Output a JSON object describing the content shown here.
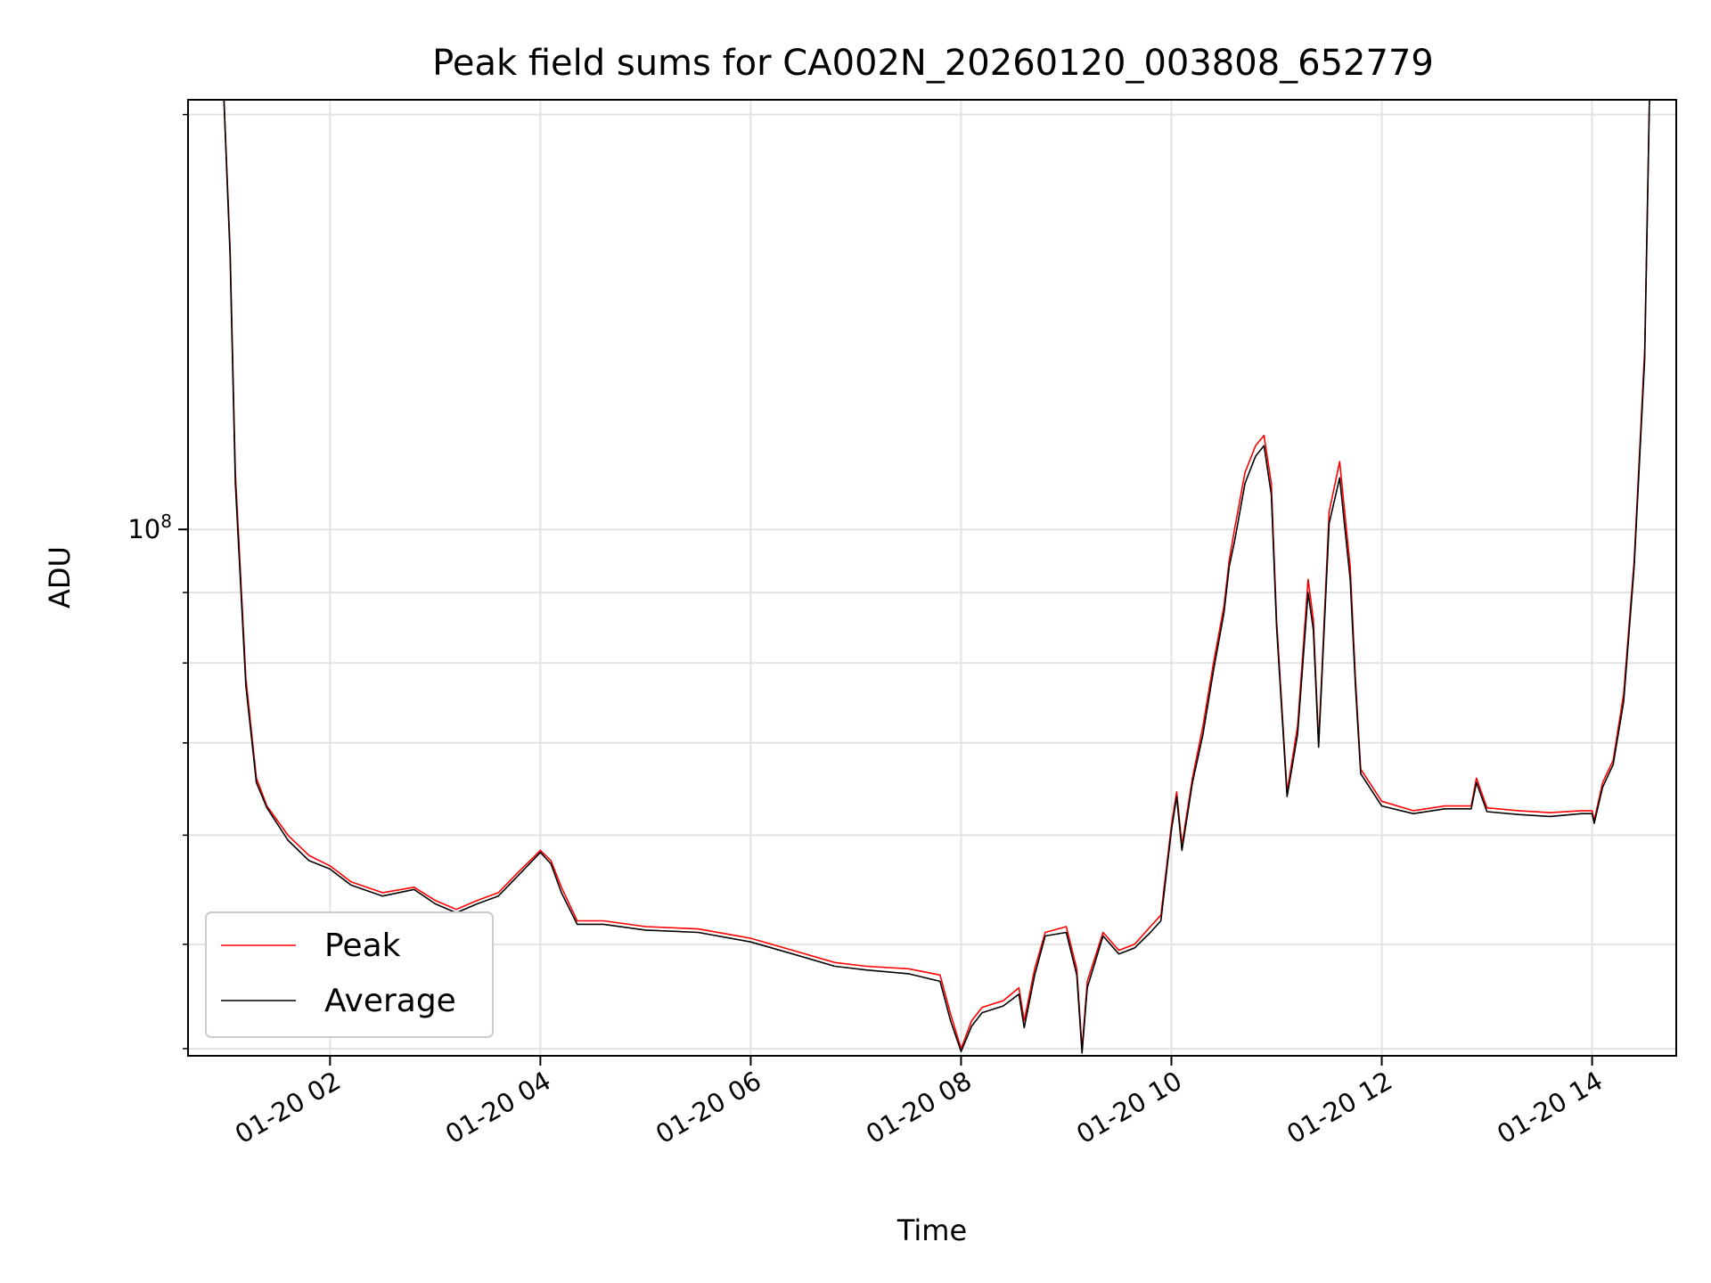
{
  "chart_data": {
    "type": "line",
    "title": "Peak field sums for CA002N_20260120_003808_652779",
    "xlabel": "Time",
    "ylabel": "ADU",
    "y_scale": "log",
    "y_tick_label": "10^8",
    "x_tick_labels": [
      "01-20 02",
      "01-20 04",
      "01-20 06",
      "01-20 08",
      "01-20 10",
      "01-20 12",
      "01-20 14"
    ],
    "x_ticks_hours": [
      2,
      4,
      6,
      8,
      10,
      12,
      14
    ],
    "xlim_hours": [
      0.65,
      14.8
    ],
    "ylim": [
      41500000,
      205000000
    ],
    "y_major_ticks": [
      100000000
    ],
    "y_minor_ticks": [
      42000000,
      50000000,
      60000000,
      70000000,
      80000000,
      90000000,
      200000000
    ],
    "grid": true,
    "legend_position": "lower-left",
    "series": [
      {
        "name": "Peak",
        "color": "#ff0000",
        "x_hours": [
          0.97,
          1.05,
          1.1,
          1.2,
          1.3,
          1.4,
          1.6,
          1.8,
          2.0,
          2.2,
          2.5,
          2.8,
          3.0,
          3.2,
          3.4,
          3.6,
          3.8,
          4.0,
          4.1,
          4.2,
          4.35,
          4.6,
          5.0,
          5.5,
          6.0,
          6.4,
          6.8,
          7.1,
          7.5,
          7.8,
          7.9,
          8.0,
          8.1,
          8.2,
          8.4,
          8.55,
          8.6,
          8.7,
          8.8,
          9.0,
          9.1,
          9.15,
          9.2,
          9.35,
          9.5,
          9.65,
          9.8,
          9.9,
          10.0,
          10.05,
          10.1,
          10.2,
          10.3,
          10.4,
          10.5,
          10.55,
          10.6,
          10.7,
          10.8,
          10.88,
          10.95,
          11.0,
          11.1,
          11.2,
          11.3,
          11.35,
          11.4,
          11.5,
          11.6,
          11.7,
          11.75,
          11.8,
          12.0,
          12.3,
          12.6,
          12.85,
          12.9,
          13.0,
          13.3,
          13.6,
          13.9,
          14.0,
          14.02,
          14.1,
          14.2,
          14.3,
          14.4,
          14.5,
          14.55
        ],
        "values": [
          225000000,
          160000000,
          110000000,
          78000000,
          66000000,
          63000000,
          60000000,
          58000000,
          57000000,
          55500000,
          54500000,
          55000000,
          53800000,
          53000000,
          53800000,
          54500000,
          56500000,
          58500000,
          57500000,
          55000000,
          52000000,
          52000000,
          51500000,
          51300000,
          50500000,
          49500000,
          48500000,
          48200000,
          48000000,
          47500000,
          44500000,
          42000000,
          44000000,
          45000000,
          45500000,
          46500000,
          44000000,
          48000000,
          51000000,
          51500000,
          48000000,
          42000000,
          47000000,
          51000000,
          49500000,
          50000000,
          51500000,
          52500000,
          61000000,
          64500000,
          59000000,
          66000000,
          72000000,
          80000000,
          88000000,
          95000000,
          100000000,
          110000000,
          115000000,
          117000000,
          108000000,
          86000000,
          64500000,
          72000000,
          92000000,
          86000000,
          70000000,
          103000000,
          112000000,
          94000000,
          78000000,
          67000000,
          63500000,
          62500000,
          63000000,
          63000000,
          66000000,
          62800000,
          62500000,
          62300000,
          62500000,
          62500000,
          61500000,
          65500000,
          68000000,
          76000000,
          95000000,
          135000000,
          215000000
        ]
      },
      {
        "name": "Average",
        "color": "#000000",
        "x_hours": [
          0.97,
          1.05,
          1.1,
          1.2,
          1.3,
          1.4,
          1.6,
          1.8,
          2.0,
          2.2,
          2.5,
          2.8,
          3.0,
          3.2,
          3.4,
          3.6,
          3.8,
          4.0,
          4.1,
          4.2,
          4.35,
          4.6,
          5.0,
          5.5,
          6.0,
          6.4,
          6.8,
          7.1,
          7.5,
          7.8,
          7.9,
          8.0,
          8.1,
          8.2,
          8.4,
          8.55,
          8.6,
          8.7,
          8.8,
          9.0,
          9.1,
          9.15,
          9.2,
          9.35,
          9.5,
          9.65,
          9.8,
          9.9,
          10.0,
          10.05,
          10.1,
          10.2,
          10.3,
          10.4,
          10.5,
          10.55,
          10.6,
          10.7,
          10.8,
          10.88,
          10.95,
          11.0,
          11.1,
          11.2,
          11.3,
          11.35,
          11.4,
          11.5,
          11.6,
          11.7,
          11.75,
          11.8,
          12.0,
          12.3,
          12.6,
          12.85,
          12.9,
          13.0,
          13.3,
          13.6,
          13.9,
          14.0,
          14.02,
          14.1,
          14.2,
          14.3,
          14.4,
          14.5,
          14.55
        ],
        "values": [
          225000000,
          158000000,
          108000000,
          77000000,
          65500000,
          62800000,
          59500000,
          57500000,
          56700000,
          55200000,
          54200000,
          54800000,
          53500000,
          52700000,
          53500000,
          54200000,
          56200000,
          58300000,
          57200000,
          54500000,
          51700000,
          51700000,
          51200000,
          51000000,
          50200000,
          49200000,
          48200000,
          47900000,
          47600000,
          47000000,
          44000000,
          41800000,
          43600000,
          44600000,
          45100000,
          46000000,
          43500000,
          47500000,
          50700000,
          51000000,
          47500000,
          41700000,
          46500000,
          50700000,
          49200000,
          49700000,
          51000000,
          52000000,
          60500000,
          64000000,
          58500000,
          65500000,
          71000000,
          79000000,
          87000000,
          94000000,
          98000000,
          108000000,
          113000000,
          115000000,
          106000000,
          85000000,
          64000000,
          71000000,
          90000000,
          84500000,
          69500000,
          101000000,
          109000000,
          92000000,
          77000000,
          66500000,
          63000000,
          62200000,
          62700000,
          62700000,
          65500000,
          62400000,
          62100000,
          61900000,
          62200000,
          62200000,
          61200000,
          65000000,
          67500000,
          75000000,
          94000000,
          133000000,
          215000000
        ]
      }
    ]
  }
}
